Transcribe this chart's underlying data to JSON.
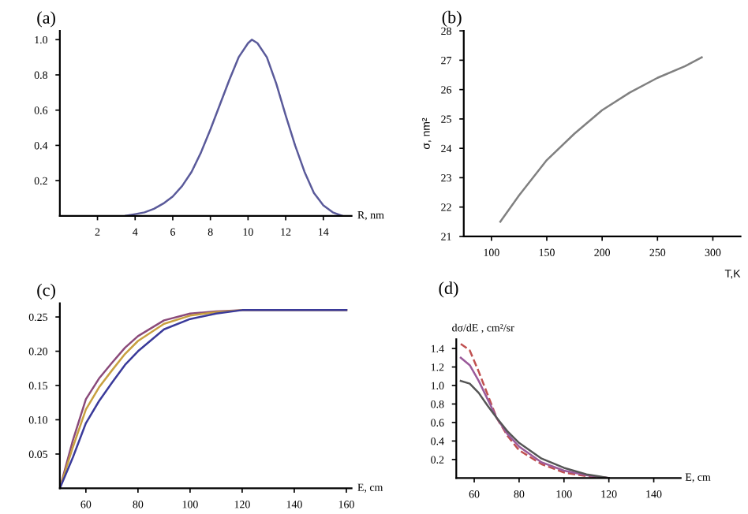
{
  "chart_data": [
    {
      "type": "line",
      "title": "(a)",
      "xlabel": "R, nm",
      "xlim": [
        0,
        15.5
      ],
      "ylim": [
        0,
        1.05
      ],
      "xticks": [
        2,
        4,
        6,
        8,
        10,
        12,
        14
      ],
      "yticks": [
        0.2,
        0.4,
        0.6,
        0.8,
        {
          "value": 1.0,
          "label": "1.0"
        }
      ],
      "grid": false,
      "series": [
        {
          "color": "#5a5a9a",
          "x": [
            3.5,
            4,
            4.5,
            5,
            5.5,
            6,
            6.5,
            7,
            7.5,
            8,
            8.5,
            9,
            9.5,
            10,
            10.2,
            10.5,
            11,
            11.5,
            12,
            12.5,
            13,
            13.5,
            14,
            14.5,
            15
          ],
          "values": [
            0,
            0.01,
            0.02,
            0.04,
            0.07,
            0.11,
            0.17,
            0.25,
            0.36,
            0.49,
            0.63,
            0.77,
            0.9,
            0.98,
            1.0,
            0.98,
            0.9,
            0.75,
            0.57,
            0.4,
            0.25,
            0.13,
            0.06,
            0.02,
            0
          ]
        }
      ]
    },
    {
      "type": "line",
      "title": "(b)",
      "xlabel": "T,K",
      "ylabel": "σ, nm²",
      "xlim": [
        75,
        325
      ],
      "ylim": [
        21,
        28
      ],
      "xticks": [
        100,
        150,
        200,
        250,
        300
      ],
      "yticks": [
        21,
        22,
        23,
        24,
        25,
        26,
        27,
        28
      ],
      "grid": false,
      "series": [
        {
          "color": "#808080",
          "x": [
            108,
            125,
            150,
            175,
            200,
            225,
            250,
            275,
            290
          ],
          "values": [
            21.5,
            22.4,
            23.6,
            24.5,
            25.3,
            25.9,
            26.4,
            26.8,
            27.1
          ]
        }
      ]
    },
    {
      "type": "line",
      "title": "(c)",
      "xlabel": "E, cm",
      "xlim": [
        50,
        162
      ],
      "ylim": [
        0,
        0.27
      ],
      "xticks": [
        60,
        80,
        100,
        120,
        140,
        160
      ],
      "yticks": [
        0.05,
        {
          "value": 0.1,
          "label": "0.10"
        },
        0.15,
        {
          "value": 0.2,
          "label": "0.20"
        },
        0.25
      ],
      "grid": false,
      "series": [
        {
          "color": "#8a4a7a",
          "x": [
            50,
            55,
            60,
            65,
            70,
            75,
            80,
            90,
            100,
            110,
            120,
            160
          ],
          "values": [
            0,
            0.07,
            0.13,
            0.16,
            0.183,
            0.205,
            0.222,
            0.245,
            0.255,
            0.258,
            0.26,
            0.26
          ]
        },
        {
          "color": "#c8a040",
          "x": [
            50,
            55,
            60,
            65,
            70,
            75,
            80,
            90,
            100,
            110,
            120,
            160
          ],
          "values": [
            0,
            0.06,
            0.115,
            0.147,
            0.172,
            0.196,
            0.215,
            0.24,
            0.252,
            0.257,
            0.26,
            0.26
          ]
        },
        {
          "color": "#3a3a9a",
          "x": [
            50,
            55,
            60,
            65,
            70,
            75,
            80,
            90,
            100,
            110,
            120,
            160
          ],
          "values": [
            0,
            0.045,
            0.095,
            0.127,
            0.154,
            0.18,
            0.2,
            0.232,
            0.247,
            0.255,
            0.26,
            0.26
          ]
        }
      ]
    },
    {
      "type": "line",
      "title": "(d)",
      "xlabel": "E, cm",
      "ylabel": "dσ/dE , cm²/sr",
      "xlim": [
        52,
        152
      ],
      "ylim": [
        0,
        1.5
      ],
      "xticks": [
        60,
        80,
        100,
        120,
        140
      ],
      "yticks": [
        0.2,
        0.4,
        0.6,
        0.8,
        {
          "value": 1.0,
          "label": "1.0"
        },
        1.2,
        1.4
      ],
      "grid": false,
      "series": [
        {
          "color": "#c05050",
          "line_style": "dashed",
          "x": [
            54,
            58,
            62,
            66,
            70,
            75,
            80,
            90,
            100,
            110,
            120
          ],
          "values": [
            1.45,
            1.38,
            1.15,
            0.9,
            0.65,
            0.45,
            0.3,
            0.15,
            0.06,
            0.02,
            0
          ]
        },
        {
          "color": "#9a5a9a",
          "line_style": "solid",
          "x": [
            54,
            58,
            62,
            66,
            70,
            75,
            80,
            90,
            100,
            110,
            120
          ],
          "values": [
            1.3,
            1.22,
            1.05,
            0.85,
            0.65,
            0.47,
            0.34,
            0.17,
            0.08,
            0.03,
            0
          ]
        },
        {
          "color": "#555555",
          "line_style": "solid",
          "x": [
            54,
            58,
            62,
            66,
            70,
            75,
            80,
            90,
            100,
            110,
            120
          ],
          "values": [
            1.05,
            1.02,
            0.92,
            0.78,
            0.65,
            0.5,
            0.38,
            0.21,
            0.11,
            0.04,
            0
          ]
        }
      ]
    }
  ]
}
